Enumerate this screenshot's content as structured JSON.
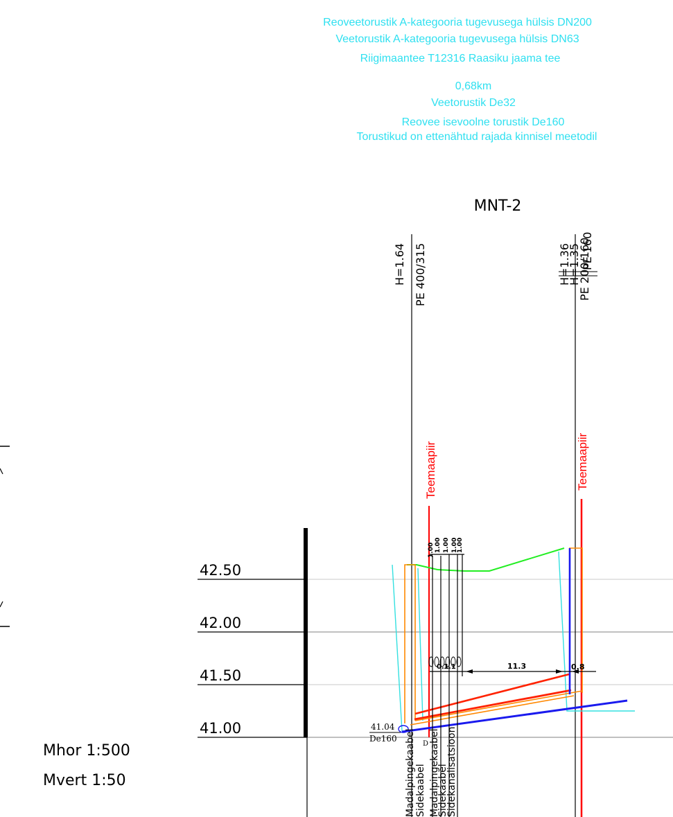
{
  "notes": {
    "line1": "Reoveetorustik A-kategooria tugevusega hülsis DN200",
    "line2": "Veetorustik A-kategooria tugevusega hülsis DN63",
    "line3": "Riigimaantee T12316 Raasiku jaama tee",
    "line4": "0,68km",
    "line5": "Veetorustik De32",
    "line6": "Reovee isevoolne torustik De160",
    "line7": "Torustikud on ettenähtud rajada kinnisel meetodil"
  },
  "section_title": "MNT-2",
  "left_column": {
    "h_label": "H=1.64",
    "pipe_label": "PE 400/315",
    "edge_label": "Teemaapiir"
  },
  "right_column": {
    "h_label_1": "H=1.36",
    "h_label_2": "H=1.35",
    "pipe_label_1": "PE 200/160",
    "pipe_label_2": "PE 160",
    "edge_label": "Teemaapiir"
  },
  "elevations": [
    "42.50",
    "42.00",
    "41.50",
    "41.00"
  ],
  "scales": {
    "horizontal": "Mhor 1:500",
    "vertical": "Mvert 1:50"
  },
  "dimensions": {
    "spacing_1": "1.00",
    "spacing_2": "1.00",
    "spacing_3": "1.00",
    "spacing_4": "1.00",
    "spacing_5": "1.00",
    "dist_small_1": "0.1",
    "dist_small_2": "1.1",
    "dist_main": "11.3",
    "dist_right": "0.8"
  },
  "pipe_marker": {
    "elevation": "41.04",
    "diameter": "De160",
    "extra": "D"
  },
  "cable_labels": [
    "Madalpingekaabel",
    "Sidekaabel",
    "Madalpingekaabel",
    "Sidekaabel",
    "Sidekanalisatsioon"
  ],
  "colors": {
    "notes": "#2fe0f0",
    "road_edge": "#ff0000",
    "ground_line": "#22ee22",
    "water_pipe": "#1a1aee",
    "sewer_pipe": "#ff2200",
    "casing": "#ff8800",
    "trench": "#33e0e0"
  }
}
